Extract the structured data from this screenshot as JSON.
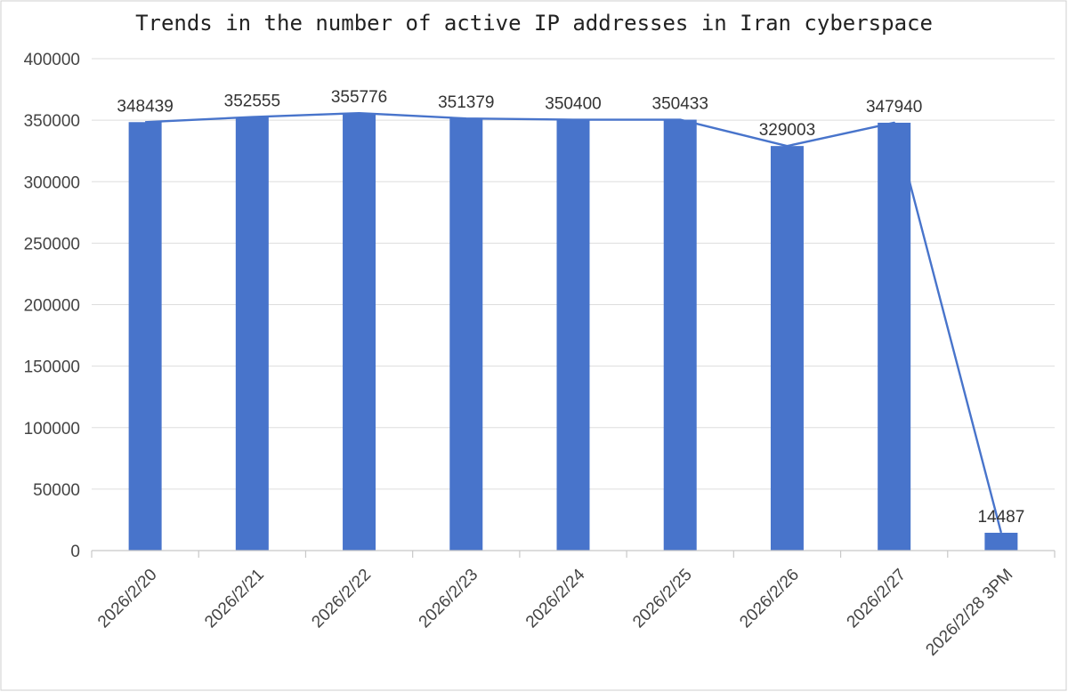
{
  "chart_data": {
    "type": "bar",
    "title": "Trends in the number of active IP addresses in Iran cyberspace",
    "xlabel": "",
    "ylabel": "",
    "categories": [
      "2026/2/20",
      "2026/2/21",
      "2026/2/22",
      "2026/2/23",
      "2026/2/24",
      "2026/2/25",
      "2026/2/26",
      "2026/2/27",
      "2026/2/28 3PM"
    ],
    "series": [
      {
        "values": [
          348439,
          352555,
          355776,
          351379,
          350400,
          350433,
          329003,
          347940,
          14487
        ]
      }
    ],
    "overlay_line": true,
    "data_labels": [
      "348439",
      "352555",
      "355776",
      "351379",
      "350400",
      "350433",
      "329003",
      "347940",
      "14487"
    ],
    "ylim": [
      0,
      400000
    ],
    "yticks": [
      0,
      50000,
      100000,
      150000,
      200000,
      250000,
      300000,
      350000,
      400000
    ],
    "ytick_labels": [
      "0",
      "50000",
      "100000",
      "150000",
      "200000",
      "250000",
      "300000",
      "350000",
      "400000"
    ],
    "grid": true,
    "legend": "none",
    "colors": {
      "bar": "#4874CB",
      "line": "#4874CB"
    }
  }
}
